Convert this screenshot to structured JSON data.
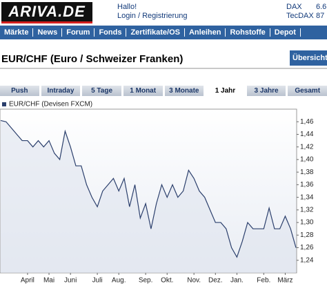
{
  "header": {
    "logo": "ARIVA.DE",
    "greeting": "Hallo!",
    "login": "Login / Registrierung",
    "indices": [
      {
        "name": "DAX",
        "value": "6.6"
      },
      {
        "name": "TecDAX",
        "value": "87"
      }
    ]
  },
  "nav": [
    "Märkte",
    "News",
    "Forum",
    "Fonds",
    "Zertifikate/OS",
    "Anleihen",
    "Rohstoffe",
    "Depot"
  ],
  "page_title": "EUR/CHF (Euro / Schweizer Franken)",
  "overview_button": "Übersicht",
  "tabs": [
    "Push",
    "Intraday",
    "5 Tage",
    "1 Monat",
    "3 Monate",
    "1 Jahr",
    "3 Jahre",
    "Gesamt"
  ],
  "active_tab": 5,
  "chart_data": {
    "type": "line",
    "categories": [
      null,
      null,
      null,
      null,
      null,
      "April",
      null,
      null,
      null,
      "Mai",
      null,
      null,
      null,
      "Juni",
      null,
      null,
      null,
      null,
      "Juli",
      null,
      null,
      null,
      "Aug.",
      null,
      null,
      null,
      null,
      "Sep.",
      null,
      null,
      null,
      "Okt.",
      null,
      null,
      null,
      null,
      "Nov.",
      null,
      null,
      null,
      "Dez.",
      null,
      null,
      null,
      "Jan.",
      null,
      null,
      null,
      null,
      "Feb.",
      null,
      null,
      null,
      "März",
      null,
      null
    ],
    "series": [
      {
        "name": "EUR/CHF (Devisen FXCM)",
        "color": "#2b3f6c",
        "values": [
          1.462,
          1.46,
          1.45,
          1.44,
          1.43,
          1.43,
          1.42,
          1.43,
          1.42,
          1.43,
          1.41,
          1.4,
          1.445,
          1.42,
          1.39,
          1.39,
          1.36,
          1.34,
          1.325,
          1.35,
          1.36,
          1.37,
          1.35,
          1.37,
          1.325,
          1.36,
          1.307,
          1.33,
          1.29,
          1.33,
          1.36,
          1.34,
          1.36,
          1.34,
          1.35,
          1.383,
          1.37,
          1.35,
          1.34,
          1.32,
          1.3,
          1.3,
          1.29,
          1.26,
          1.245,
          1.27,
          1.3,
          1.29,
          1.29,
          1.29,
          1.323,
          1.29,
          1.29,
          1.31,
          1.29,
          1.26
        ]
      }
    ],
    "ylim": [
      1.22,
      1.48
    ],
    "yticks": [
      {
        "value": 1.24,
        "label": "1,24"
      },
      {
        "value": 1.26,
        "label": "1,26"
      },
      {
        "value": 1.28,
        "label": "1,28"
      },
      {
        "value": 1.3,
        "label": "1,30"
      },
      {
        "value": 1.32,
        "label": "1,32"
      },
      {
        "value": 1.34,
        "label": "1,34"
      },
      {
        "value": 1.36,
        "label": "1,36"
      },
      {
        "value": 1.38,
        "label": "1,38"
      },
      {
        "value": 1.4,
        "label": "1,40"
      },
      {
        "value": 1.42,
        "label": "1,42"
      },
      {
        "value": 1.44,
        "label": "1,44"
      },
      {
        "value": 1.46,
        "label": "1,46"
      }
    ],
    "grid": false
  }
}
